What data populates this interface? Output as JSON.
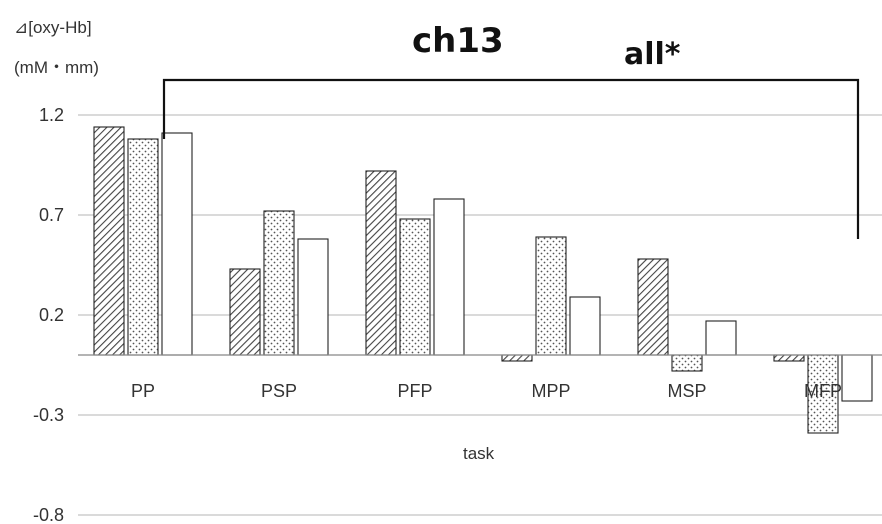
{
  "chart_data": {
    "type": "bar",
    "title": "ch13",
    "significance_label": "all*",
    "ylabel_line1": "⊿[oxy-Hb]",
    "ylabel_line2": "(mM・mm)",
    "xlabel": "task",
    "categories": [
      "PP",
      "PSP",
      "PFP",
      "MPP",
      "MSP",
      "MFP"
    ],
    "series": [
      {
        "pattern": "hatched",
        "values": [
          1.14,
          0.43,
          0.92,
          -0.03,
          0.48,
          -0.03
        ]
      },
      {
        "pattern": "dotted",
        "values": [
          1.08,
          0.72,
          0.68,
          0.59,
          -0.08,
          -0.39
        ]
      },
      {
        "pattern": "blank",
        "values": [
          1.11,
          0.58,
          0.78,
          0.29,
          0.17,
          -0.23
        ]
      }
    ],
    "ylim": [
      -0.8,
      1.3
    ],
    "yticks": [
      1.2,
      0.7,
      0.2,
      -0.3,
      -0.8
    ],
    "ytick_labels": [
      "1.2",
      "0.7",
      "0.2",
      "-0.3",
      "-0.8"
    ],
    "grid": true,
    "legend": "none",
    "bracket": {
      "from_category": "PP",
      "to_category": "MFP"
    }
  }
}
